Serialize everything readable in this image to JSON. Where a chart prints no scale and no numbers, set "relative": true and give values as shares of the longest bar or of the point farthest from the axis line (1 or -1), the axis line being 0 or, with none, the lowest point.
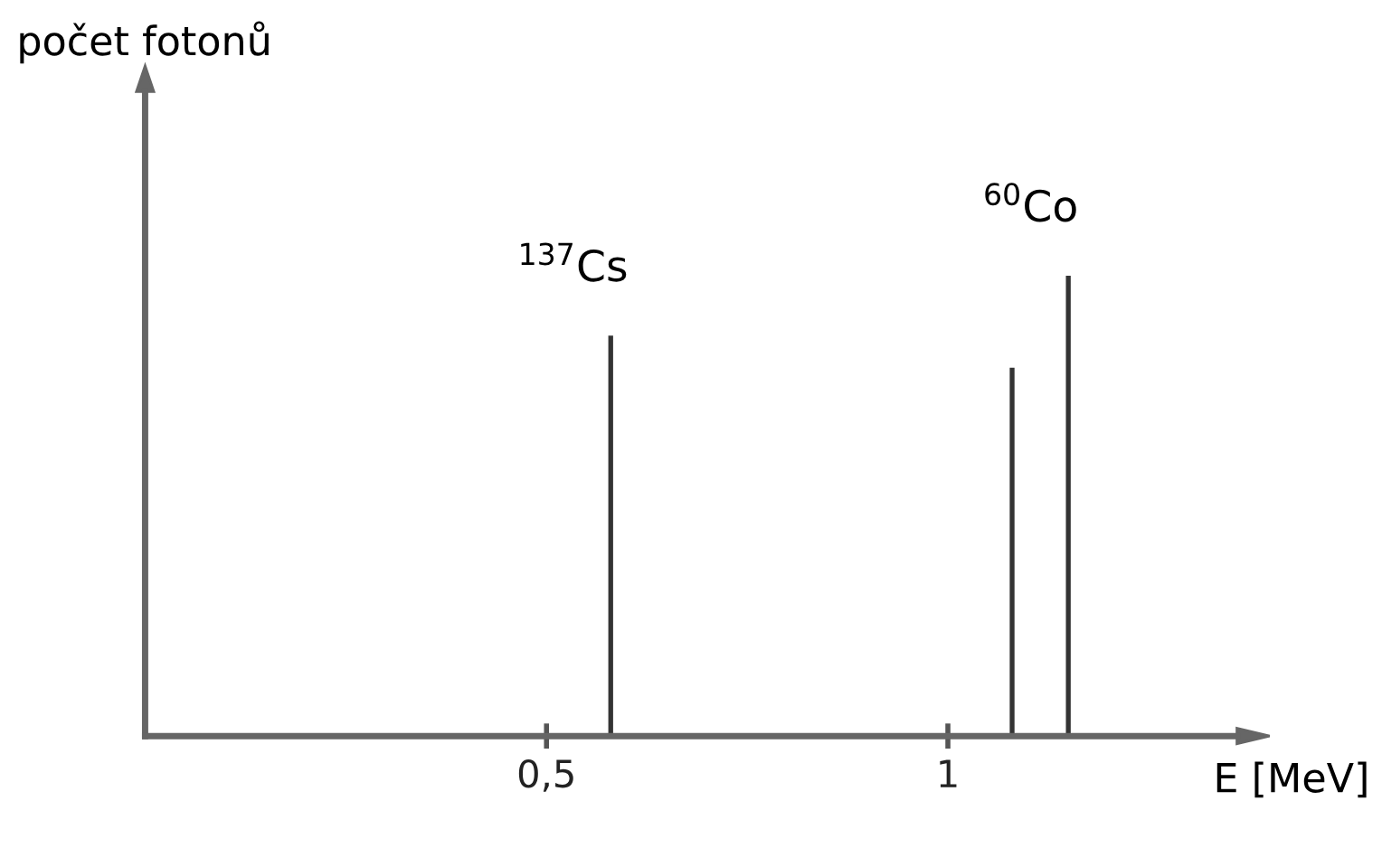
{
  "chart_data": {
    "type": "bar",
    "x": [
      0.58,
      1.08,
      1.15
    ],
    "values": [
      0.87,
      0.8,
      1
    ],
    "relative": true,
    "color": "#333333",
    "xlim": [
      0,
      1.36
    ],
    "xticks": [
      {
        "value": 0.5,
        "label": "0,5"
      },
      {
        "value": 1,
        "label": "1"
      }
    ],
    "xlabel": "E [MeV]",
    "annotations": [
      "počet fotonů",
      {
        "text": "$^{137}$Cs",
        "x": 0.58,
        "y": 0.87
      },
      {
        "text": "$^{60}$Co",
        "x": 1.15,
        "y": 1
      }
    ]
  }
}
